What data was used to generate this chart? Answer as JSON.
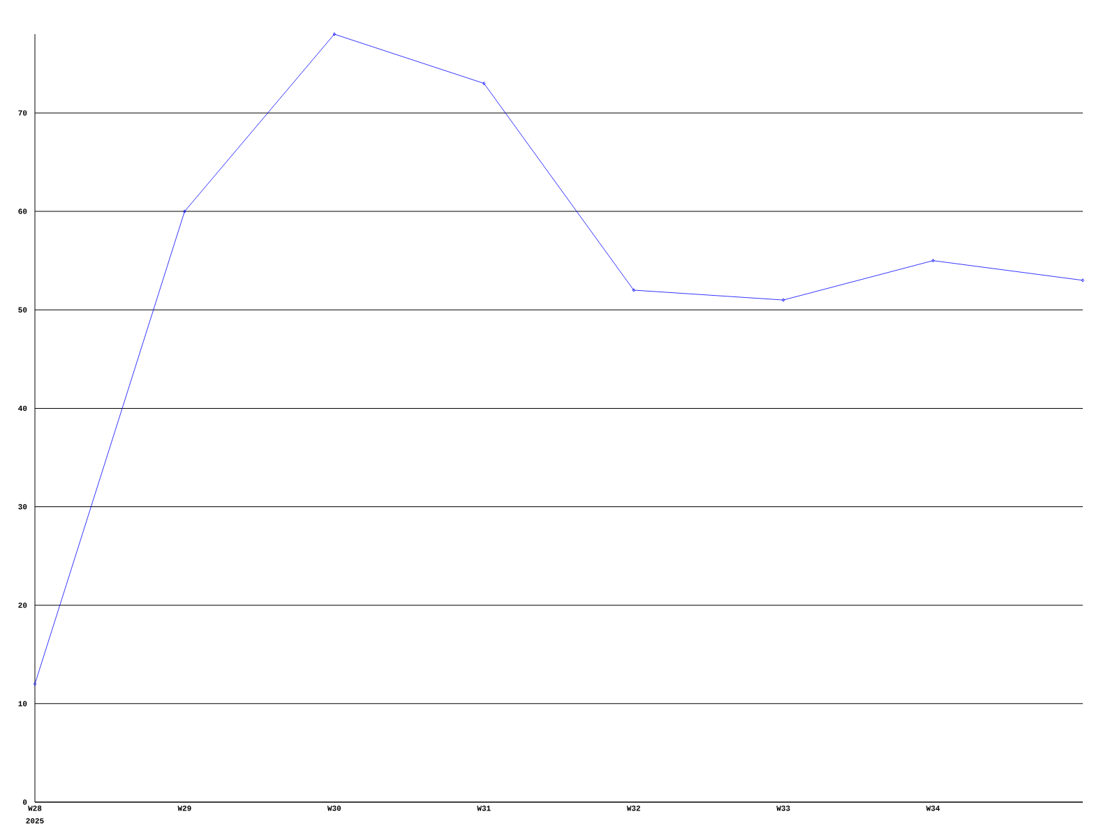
{
  "chart_data": {
    "type": "line",
    "categories": [
      "W28",
      "W29",
      "W30",
      "W31",
      "W32",
      "W33",
      "W34",
      null
    ],
    "series": [
      {
        "color": "#0000ff",
        "values": [
          12,
          60,
          78,
          73,
          52,
          51,
          55,
          53
        ]
      }
    ],
    "ylim": [
      0,
      78
    ],
    "yticks": [
      0,
      10,
      20,
      30,
      40,
      50,
      60,
      70
    ],
    "grid": "y",
    "marker": "diamond",
    "line_style": "solid",
    "annotations": [
      "2025"
    ]
  }
}
